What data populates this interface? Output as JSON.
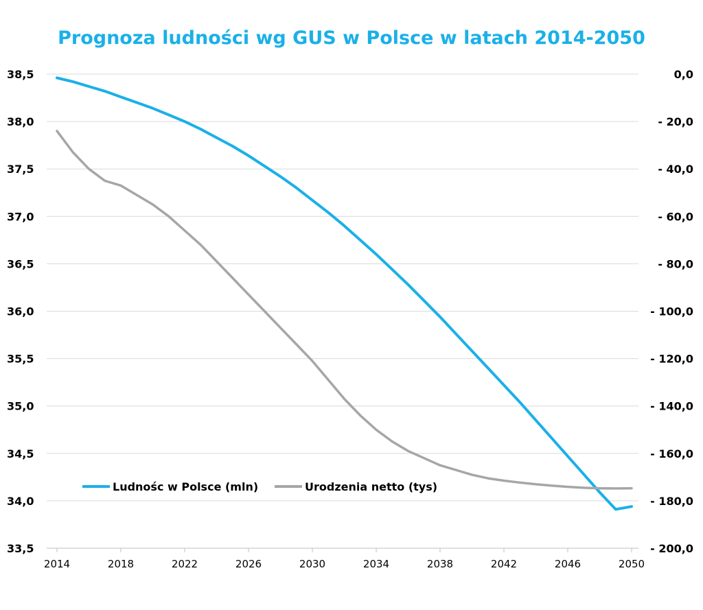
{
  "chart_data": {
    "type": "line",
    "title": "Prognoza ludności wg GUS w Polsce w latach 2014-2050",
    "title_color": "#1ab0e8",
    "x": [
      2014,
      2015,
      2016,
      2017,
      2018,
      2019,
      2020,
      2021,
      2022,
      2023,
      2024,
      2025,
      2026,
      2027,
      2028,
      2029,
      2030,
      2031,
      2032,
      2033,
      2034,
      2035,
      2036,
      2037,
      2038,
      2039,
      2040,
      2041,
      2042,
      2043,
      2044,
      2045,
      2046,
      2047,
      2048,
      2049,
      2050
    ],
    "x_ticks": [
      "2014",
      "2018",
      "2022",
      "2026",
      "2030",
      "2034",
      "2038",
      "2042",
      "2046",
      "2050"
    ],
    "x_tick_values": [
      2014,
      2018,
      2022,
      2026,
      2030,
      2034,
      2038,
      2042,
      2046,
      2050
    ],
    "y_left": {
      "ylim": [
        33.5,
        38.5
      ],
      "ticks": [
        "38,5",
        "38,0",
        "37,5",
        "37,0",
        "36,5",
        "36,0",
        "35,5",
        "35,0",
        "34,5",
        "34,0",
        "33,5"
      ],
      "tick_values": [
        38.5,
        38.0,
        37.5,
        37.0,
        36.5,
        36.0,
        35.5,
        35.0,
        34.5,
        34.0,
        33.5
      ]
    },
    "y_right": {
      "ylim": [
        -200,
        0
      ],
      "ticks": [
        "0,0",
        "- 20,0",
        "- 40,0",
        "- 60,0",
        "- 80,0",
        "- 100,0",
        "- 120,0",
        "- 140,0",
        "- 160,0",
        "- 180,0",
        "- 200,0"
      ],
      "tick_values": [
        0,
        -20,
        -40,
        -60,
        -80,
        -100,
        -120,
        -140,
        -160,
        -180,
        -200
      ]
    },
    "grid": true,
    "legend_position": "bottom-left",
    "series": [
      {
        "name": "Ludnośc w Polsce (mln)",
        "axis": "left",
        "color": "#1ab0e8",
        "values": [
          38.46,
          38.42,
          38.37,
          38.32,
          38.26,
          38.2,
          38.14,
          38.07,
          38.0,
          37.92,
          37.83,
          37.74,
          37.64,
          37.53,
          37.42,
          37.3,
          37.17,
          37.04,
          36.9,
          36.75,
          36.6,
          36.44,
          36.28,
          36.11,
          35.94,
          35.76,
          35.58,
          35.4,
          35.22,
          35.04,
          34.85,
          34.66,
          34.47,
          34.28,
          34.09,
          33.91,
          33.94
        ]
      },
      {
        "name": "Urodzenia netto (tys)",
        "axis": "right",
        "color": "#a6a6a6",
        "values": [
          -24,
          -33,
          -40,
          -45,
          -47,
          -51,
          -55,
          -60,
          -66,
          -72,
          -79,
          -86,
          -93,
          -100,
          -107,
          -114,
          -121,
          -129,
          -137,
          -144,
          -150,
          -155,
          -159,
          -162,
          -165,
          -167,
          -169,
          -170.5,
          -171.5,
          -172.3,
          -173,
          -173.6,
          -174.1,
          -174.5,
          -174.7,
          -174.8,
          -174.7
        ]
      }
    ]
  }
}
